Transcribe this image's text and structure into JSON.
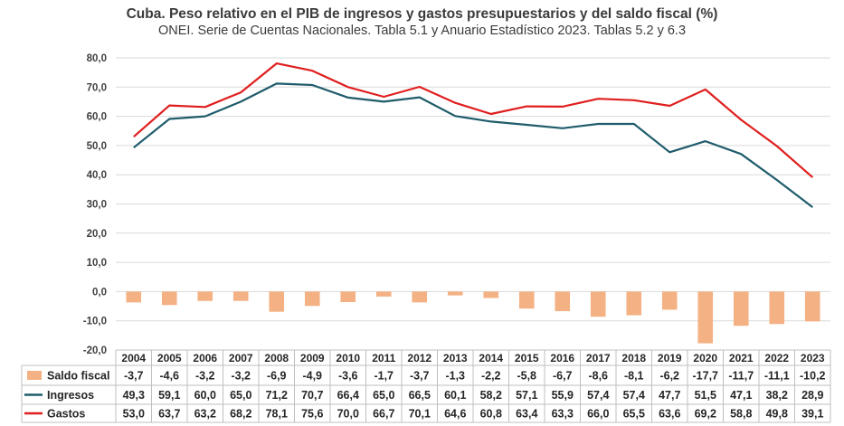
{
  "chart_data": {
    "type": "bar+line",
    "title": "Cuba. Peso relativo en el PIB de ingresos y gastos presupuestarios y del saldo fiscal (%)",
    "subtitle": "ONEI. Serie de Cuentas Nacionales. Tabla 5.1 y Anuario Estadístico 2023. Tablas 5.2 y  6.3",
    "categories": [
      "2004",
      "2005",
      "2006",
      "2007",
      "2008",
      "2009",
      "2010",
      "2011",
      "2012",
      "2013",
      "2014",
      "2015",
      "2016",
      "2017",
      "2018",
      "2019",
      "2020",
      "2021",
      "2022",
      "2023"
    ],
    "y_ticks": [
      "80,0",
      "70,0",
      "60,0",
      "50,0",
      "40,0",
      "30,0",
      "20,0",
      "10,0",
      "0,0",
      "-10,0",
      "-20,0"
    ],
    "ylim": [
      -20,
      80
    ],
    "grid": true,
    "legend": "data-table-left",
    "series": [
      {
        "name": "Saldo fiscal",
        "kind": "bar",
        "color": "#f4b183",
        "values": [
          -3.7,
          -4.6,
          -3.2,
          -3.2,
          -6.9,
          -4.9,
          -3.6,
          -1.7,
          -3.7,
          -1.3,
          -2.2,
          -5.8,
          -6.7,
          -8.6,
          -8.1,
          -6.2,
          -17.7,
          -11.7,
          -11.1,
          -10.2
        ],
        "labels": [
          "-3,7",
          "-4,6",
          "-3,2",
          "-3,2",
          "-6,9",
          "-4,9",
          "-3,6",
          "-1,7",
          "-3,7",
          "-1,3",
          "-2,2",
          "-5,8",
          "-6,7",
          "-8,6",
          "-8,1",
          "-6,2",
          "-17,7",
          "-11,7",
          "-11,1",
          "-10,2"
        ]
      },
      {
        "name": "Ingresos",
        "kind": "line",
        "color": "#1f5c6b",
        "values": [
          49.3,
          59.1,
          60.0,
          65.0,
          71.2,
          70.7,
          66.4,
          65.0,
          66.5,
          60.1,
          58.2,
          57.1,
          55.9,
          57.4,
          57.4,
          47.7,
          51.5,
          47.1,
          38.2,
          28.9
        ],
        "labels": [
          "49,3",
          "59,1",
          "60,0",
          "65,0",
          "71,2",
          "70,7",
          "66,4",
          "65,0",
          "66,5",
          "60,1",
          "58,2",
          "57,1",
          "55,9",
          "57,4",
          "57,4",
          "47,7",
          "51,5",
          "47,1",
          "38,2",
          "28,9"
        ]
      },
      {
        "name": "Gastos",
        "kind": "line",
        "color": "#e01e1e",
        "values": [
          53.0,
          63.7,
          63.2,
          68.2,
          78.1,
          75.6,
          70.0,
          66.7,
          70.1,
          64.6,
          60.8,
          63.4,
          63.3,
          66.0,
          65.5,
          63.6,
          69.2,
          58.8,
          49.8,
          39.1
        ],
        "labels": [
          "53,0",
          "63,7",
          "63,2",
          "68,2",
          "78,1",
          "75,6",
          "70,0",
          "66,7",
          "70,1",
          "64,6",
          "60,8",
          "63,4",
          "63,3",
          "66,0",
          "65,5",
          "63,6",
          "69,2",
          "58,8",
          "49,8",
          "39,1"
        ]
      }
    ]
  }
}
